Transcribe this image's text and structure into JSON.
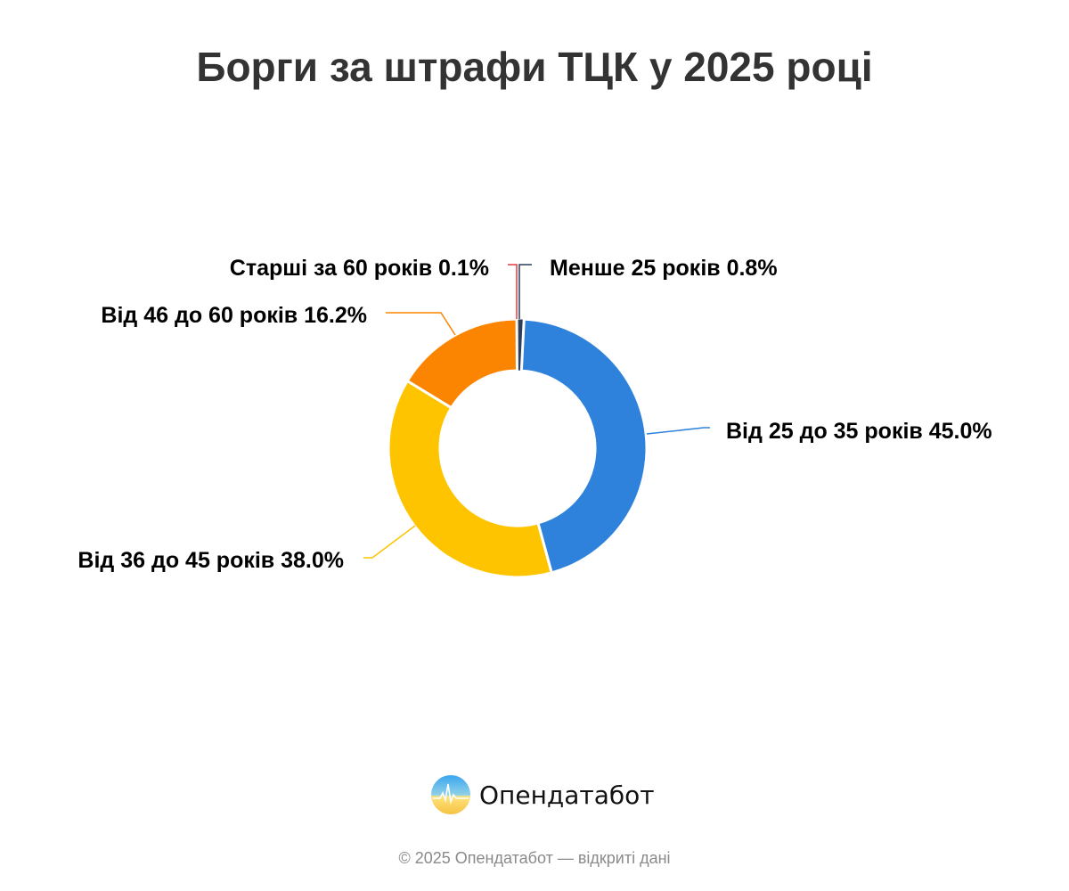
{
  "chart_data": {
    "type": "pie",
    "variant": "donut",
    "title": "Борги за штрафи ТЦК у 2025 році",
    "categories": [
      "Менше 25 років",
      "Від 25 до 35 років",
      "Від 36 до 45 років",
      "Від 46 до 60 років",
      "Старші за 60 років"
    ],
    "values": [
      0.8,
      45.0,
      38.0,
      16.2,
      0.1
    ],
    "labels": [
      "Менше 25 років 0.8%",
      "Від 25 до 35 років 45.0%",
      "Від 36 до 45 років 38.0%",
      "Від 46 до 60 років 16.2%",
      "Старші за 60 років 0.1%"
    ],
    "colors": [
      "#2c3e5c",
      "#2e82db",
      "#ffc400",
      "#fb8500",
      "#e63946"
    ],
    "legend": "none"
  },
  "brand": {
    "name": "Опендатабот",
    "logo_icon": "opendatabot-logo-icon"
  },
  "footer": "© 2025 Опендатабот — відкриті дані"
}
